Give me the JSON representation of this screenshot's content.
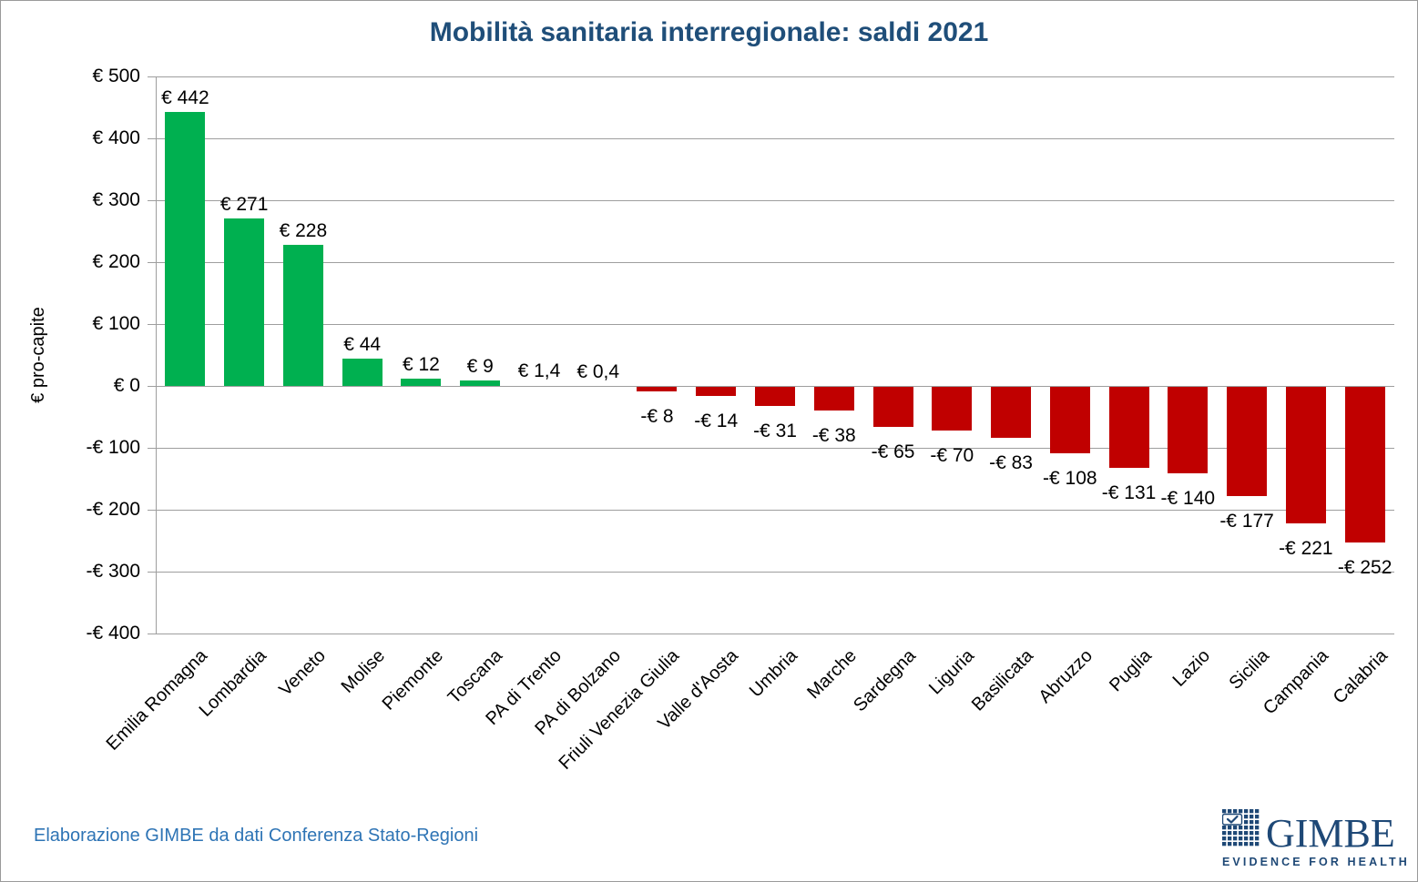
{
  "title": "Mobilità sanitaria interregionale: saldi 2021",
  "footer": {
    "source_note": "Elaborazione GIMBE da dati Conferenza Stato-Regioni"
  },
  "logo": {
    "name": "GIMBE",
    "tagline": "EVIDENCE FOR HEALTH"
  },
  "colors": {
    "positive_bar": "#00B050",
    "negative_bar": "#C00000",
    "title_text": "#1F4E79",
    "footer_text": "#2E74B5",
    "gridline": "#9e9e9e",
    "logo_navy": "#1E4876"
  },
  "chart_data": {
    "type": "bar",
    "title": "Mobilità sanitaria interregionale: saldi 2021",
    "xlabel": "",
    "ylabel": "€ pro-capite",
    "ylim": [
      -400,
      500
    ],
    "ytick_step": 100,
    "grid": true,
    "legend": false,
    "ytick_labels": [
      "€ 500",
      "€ 400",
      "€ 300",
      "€ 200",
      "€ 100",
      "€ 0",
      "-€ 100",
      "-€ 200",
      "-€ 300",
      "-€ 400"
    ],
    "categories": [
      "Emilia Romagna",
      "Lombardia",
      "Veneto",
      "Molise",
      "Piemonte",
      "Toscana",
      "PA di Trento",
      "PA di Bolzano",
      "Friuli Venezia Giulia",
      "Valle d'Aosta",
      "Umbria",
      "Marche",
      "Sardegna",
      "Liguria",
      "Basilicata",
      "Abruzzo",
      "Puglia",
      "Lazio",
      "Sicilia",
      "Campania",
      "Calabria"
    ],
    "values": [
      442,
      271,
      228,
      44,
      12,
      9,
      1.4,
      0.4,
      -8,
      -14,
      -31,
      -38,
      -65,
      -70,
      -83,
      -108,
      -131,
      -140,
      -177,
      -221,
      -252
    ],
    "value_labels": [
      "€ 442",
      "€ 271",
      "€ 228",
      "€ 44",
      "€ 12",
      "€ 9",
      "€ 1,4",
      "€ 0,4",
      "-€ 8",
      "-€ 14",
      "-€ 31",
      "-€ 38",
      "-€ 65",
      "-€ 70",
      "-€ 83",
      "-€ 108",
      "-€ 131",
      "-€ 140",
      "-€ 177",
      "-€ 221",
      "-€ 252"
    ]
  }
}
